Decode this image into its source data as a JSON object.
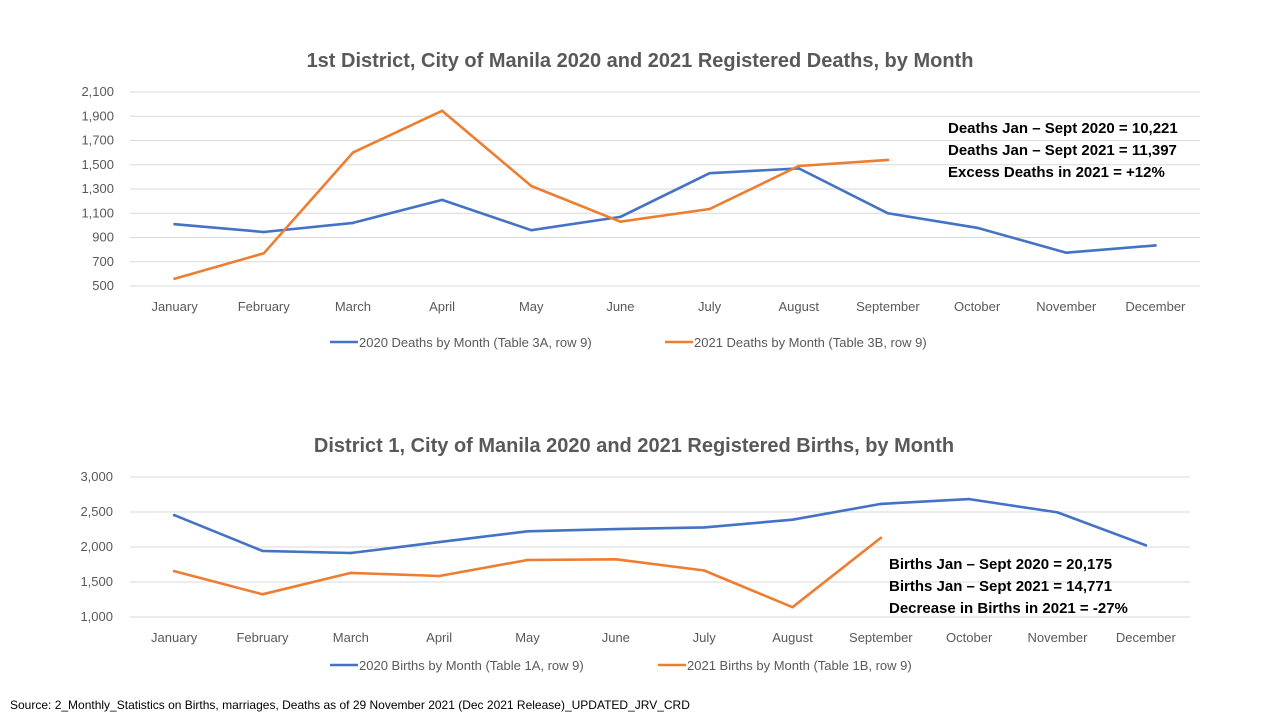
{
  "chart_data": [
    {
      "type": "line",
      "title": "1st District, City of Manila 2020 and 2021 Registered Deaths, by Month",
      "categories": [
        "January",
        "February",
        "March",
        "April",
        "May",
        "June",
        "July",
        "August",
        "September",
        "October",
        "November",
        "December"
      ],
      "ylim": [
        500,
        2100
      ],
      "yticks": [
        500,
        700,
        900,
        1100,
        1300,
        1500,
        1700,
        1900,
        2100
      ],
      "ytick_labels": [
        "500",
        "700",
        "900",
        "1,100",
        "1,300",
        "1,500",
        "1,700",
        "1,900",
        "2,100"
      ],
      "grid": true,
      "legend_position": "bottom",
      "series": [
        {
          "name": "2020 Deaths by Month (Table 3A, row 9)",
          "color": "#4472c4",
          "values": [
            1010,
            945,
            1020,
            1210,
            960,
            1070,
            1430,
            1470,
            1100,
            980,
            775,
            835
          ]
        },
        {
          "name": "2021 Deaths by Month (Table 3B, row 9)",
          "color": "#ed7d31",
          "values": [
            560,
            770,
            1600,
            1945,
            1325,
            1030,
            1135,
            1490,
            1540,
            null,
            null,
            null
          ]
        }
      ],
      "annotations": [
        "Deaths Jan – Sept 2020 = 10,221",
        "Deaths Jan – Sept 2021 = 11,397",
        "Excess Deaths in 2021 = +12%"
      ]
    },
    {
      "type": "line",
      "title": "District 1, City of Manila 2020 and 2021 Registered Births, by Month",
      "categories": [
        "January",
        "February",
        "March",
        "April",
        "May",
        "June",
        "July",
        "August",
        "September",
        "October",
        "November",
        "December"
      ],
      "ylim": [
        1000,
        3000
      ],
      "yticks": [
        1000,
        1500,
        2000,
        2500,
        3000
      ],
      "ytick_labels": [
        "1,000",
        "1,500",
        "2,000",
        "2,500",
        "3,000"
      ],
      "grid": true,
      "legend_position": "bottom",
      "series": [
        {
          "name": "2020 Births by Month (Table 1A, row 9)",
          "color": "#4472c4",
          "values": [
            2455,
            1945,
            1915,
            2070,
            2225,
            2255,
            2280,
            2390,
            2615,
            2685,
            2495,
            2025
          ]
        },
        {
          "name": "2021 Births by Month (Table 1B, row 9)",
          "color": "#ed7d31",
          "values": [
            1655,
            1325,
            1630,
            1585,
            1815,
            1825,
            1665,
            1140,
            2130,
            null,
            null,
            null
          ]
        }
      ],
      "annotations": [
        "Births Jan – Sept 2020 = 20,175",
        "Births Jan – Sept 2021 = 14,771",
        "Decrease in Births in 2021 = -27%"
      ]
    }
  ],
  "source": "Source: 2_Monthly_Statistics on Births, marriages, Deaths as of 29 November 2021 (Dec 2021 Release)_UPDATED_JRV_CRD"
}
